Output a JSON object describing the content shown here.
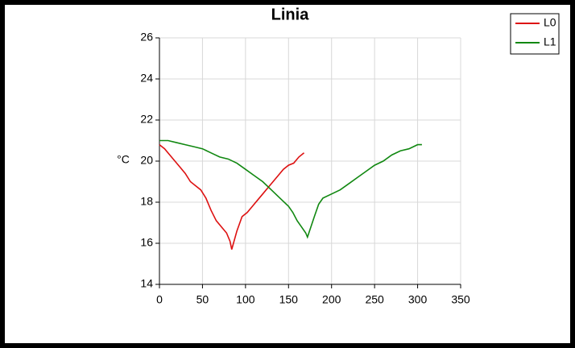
{
  "chart_data": {
    "type": "line",
    "title": "Linia",
    "y_label": "°C",
    "xlim": [
      0,
      350
    ],
    "xticks": [
      0,
      50,
      100,
      150,
      200,
      250,
      300,
      350
    ],
    "ylim": [
      14,
      26
    ],
    "yticks": [
      14,
      16,
      18,
      20,
      22,
      24,
      26
    ],
    "grid": true,
    "legend": "top-right",
    "series": [
      {
        "name": "L0",
        "color": "#dd1111",
        "x": [
          0,
          6,
          12,
          18,
          24,
          30,
          36,
          42,
          48,
          54,
          60,
          66,
          72,
          78,
          82,
          84,
          86,
          90,
          96,
          102,
          108,
          114,
          120,
          126,
          132,
          138,
          144,
          150,
          156,
          162,
          168
        ],
        "values": [
          20.8,
          20.6,
          20.3,
          20.0,
          19.7,
          19.4,
          19.0,
          18.8,
          18.6,
          18.2,
          17.6,
          17.1,
          16.8,
          16.5,
          16.1,
          15.7,
          16.0,
          16.6,
          17.3,
          17.5,
          17.8,
          18.1,
          18.4,
          18.7,
          19.0,
          19.3,
          19.6,
          19.8,
          19.9,
          20.2,
          20.4
        ]
      },
      {
        "name": "L1",
        "color": "#118811",
        "x": [
          0,
          10,
          20,
          30,
          40,
          50,
          60,
          70,
          80,
          90,
          100,
          110,
          120,
          130,
          140,
          150,
          155,
          160,
          165,
          170,
          172,
          176,
          180,
          185,
          190,
          200,
          210,
          220,
          230,
          240,
          250,
          260,
          270,
          280,
          290,
          300,
          305
        ],
        "values": [
          21.0,
          21.0,
          20.9,
          20.8,
          20.7,
          20.6,
          20.4,
          20.2,
          20.1,
          19.9,
          19.6,
          19.3,
          19.0,
          18.6,
          18.2,
          17.8,
          17.5,
          17.1,
          16.8,
          16.5,
          16.3,
          16.8,
          17.3,
          17.9,
          18.2,
          18.4,
          18.6,
          18.9,
          19.2,
          19.5,
          19.8,
          20.0,
          20.3,
          20.5,
          20.6,
          20.8,
          20.8
        ]
      }
    ]
  }
}
